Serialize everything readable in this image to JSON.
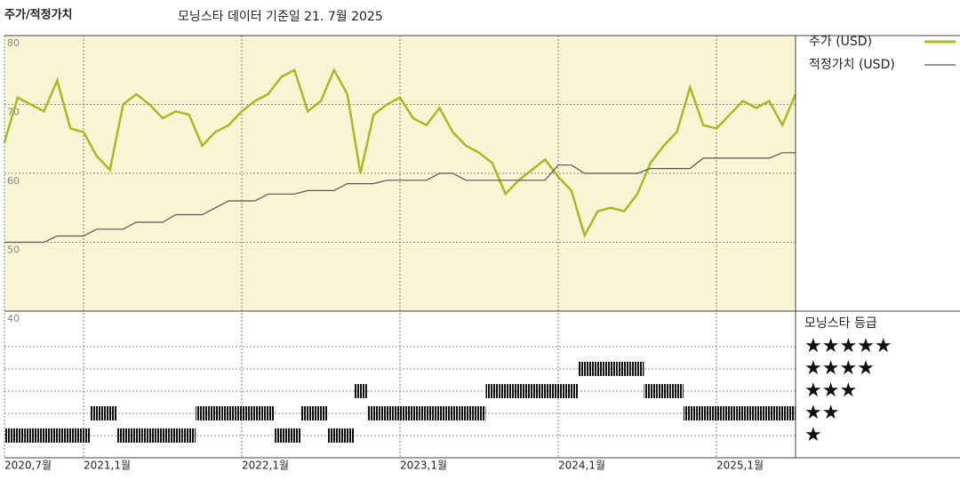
{
  "chart_data": [
    {
      "type": "line",
      "title": "주가/적정가치",
      "subtitle": "모닝스타 데이터 기준일 21. 7월 2025",
      "x": [
        "2020-07",
        "2020-08",
        "2020-09",
        "2020-10",
        "2020-11",
        "2020-12",
        "2021-01",
        "2021-02",
        "2021-03",
        "2021-04",
        "2021-05",
        "2021-06",
        "2021-07",
        "2021-08",
        "2021-09",
        "2021-10",
        "2021-11",
        "2021-12",
        "2022-01",
        "2022-02",
        "2022-03",
        "2022-04",
        "2022-05",
        "2022-06",
        "2022-07",
        "2022-08",
        "2022-09",
        "2022-10",
        "2022-11",
        "2022-12",
        "2023-01",
        "2023-02",
        "2023-03",
        "2023-04",
        "2023-05",
        "2023-06",
        "2023-07",
        "2023-08",
        "2023-09",
        "2023-10",
        "2023-11",
        "2023-12",
        "2024-01",
        "2024-02",
        "2024-03",
        "2024-04",
        "2024-05",
        "2024-06",
        "2024-07",
        "2024-08",
        "2024-09",
        "2024-10",
        "2024-11",
        "2024-12",
        "2025-01",
        "2025-02",
        "2025-03",
        "2025-04",
        "2025-05",
        "2025-06",
        "2025-07"
      ],
      "series": [
        {
          "name": "주가 (USD)",
          "color": "#abb825",
          "values": [
            64.5,
            71,
            70,
            69,
            73.5,
            66.5,
            66,
            62.5,
            60.5,
            70,
            71.5,
            70,
            68,
            69,
            68.5,
            64,
            66,
            67,
            69,
            70.5,
            71.5,
            74,
            75,
            69,
            70.5,
            75,
            71.5,
            60,
            68.5,
            70,
            71,
            68,
            67,
            69.5,
            66,
            64,
            63,
            61.5,
            57,
            59,
            60.5,
            62,
            59.5,
            57.5,
            51,
            54.5,
            55,
            54.5,
            57,
            61.5,
            64,
            66,
            72.5,
            67,
            66.5,
            68.5,
            70.5,
            69.5,
            70.5,
            67,
            71.5
          ]
        },
        {
          "name": "적정가치 (USD)",
          "color": "#555555",
          "values": [
            50,
            50,
            50,
            50,
            50.9,
            50.9,
            50.9,
            51.9,
            51.9,
            51.9,
            52.9,
            52.9,
            52.9,
            54,
            54,
            54,
            55,
            56,
            56,
            56,
            57,
            57,
            57,
            57.5,
            57.5,
            57.5,
            58.5,
            58.5,
            58.5,
            59,
            59,
            59,
            59,
            60,
            60,
            59,
            59,
            59,
            59,
            59,
            59,
            59,
            61.2,
            61.2,
            60,
            60,
            60,
            60,
            60,
            60.7,
            60.7,
            60.7,
            60.7,
            62.2,
            62.2,
            62.2,
            62.2,
            62.2,
            62.2,
            63,
            63
          ]
        }
      ],
      "xlim": [
        "2020-07",
        "2025-07"
      ],
      "xticks": [
        {
          "value": "2020-07",
          "label": "2020,7월"
        },
        {
          "value": "2021-01",
          "label": "2021,1월"
        },
        {
          "value": "2022-01",
          "label": "2022,1월"
        },
        {
          "value": "2023-01",
          "label": "2023,1월"
        },
        {
          "value": "2024-01",
          "label": "2024,1월"
        },
        {
          "value": "2025-01",
          "label": "2025,1월"
        }
      ],
      "ylim": [
        40,
        80
      ],
      "yticks": [
        40,
        50,
        60,
        70,
        80
      ],
      "grid": true,
      "background": "#f8f4d4"
    },
    {
      "type": "rating",
      "title": "모닝스타 등급",
      "color": "#111111",
      "x": [
        "2020-07",
        "2020-08",
        "2020-09",
        "2020-10",
        "2020-11",
        "2020-12",
        "2021-01",
        "2021-02",
        "2021-03",
        "2021-04",
        "2021-05",
        "2021-06",
        "2021-07",
        "2021-08",
        "2021-09",
        "2021-10",
        "2021-11",
        "2021-12",
        "2022-01",
        "2022-02",
        "2022-03",
        "2022-04",
        "2022-05",
        "2022-06",
        "2022-07",
        "2022-08",
        "2022-09",
        "2022-10",
        "2022-11",
        "2022-12",
        "2023-01",
        "2023-02",
        "2023-03",
        "2023-04",
        "2023-05",
        "2023-06",
        "2023-07",
        "2023-08",
        "2023-09",
        "2023-10",
        "2023-11",
        "2023-12",
        "2024-01",
        "2024-02",
        "2024-03",
        "2024-04",
        "2024-05",
        "2024-06",
        "2024-07",
        "2024-08",
        "2024-09",
        "2024-10",
        "2024-11",
        "2024-12",
        "2025-01",
        "2025-02",
        "2025-03",
        "2025-04",
        "2025-05",
        "2025-06",
        "2025-07"
      ],
      "values": [
        1,
        1,
        1,
        1,
        1,
        1,
        1,
        2,
        2,
        1,
        1,
        1,
        1,
        1,
        1,
        2,
        2,
        2,
        2,
        2,
        2,
        1,
        1,
        2,
        2,
        1,
        1,
        3,
        2,
        2,
        2,
        2,
        2,
        2,
        2,
        2,
        2,
        3,
        3,
        3,
        3,
        3,
        3,
        3,
        4,
        4,
        4,
        4,
        4,
        3,
        3,
        3,
        2,
        2,
        2,
        2,
        2,
        2,
        2,
        2,
        2
      ],
      "ylim": [
        0,
        6.6
      ],
      "yticks": [
        {
          "value": 5,
          "label": "★★★★★"
        },
        {
          "value": 4,
          "label": "★★★★"
        },
        {
          "value": 3,
          "label": "★★★"
        },
        {
          "value": 2,
          "label": "★★"
        },
        {
          "value": 1,
          "label": "★"
        }
      ],
      "grid": true
    }
  ]
}
